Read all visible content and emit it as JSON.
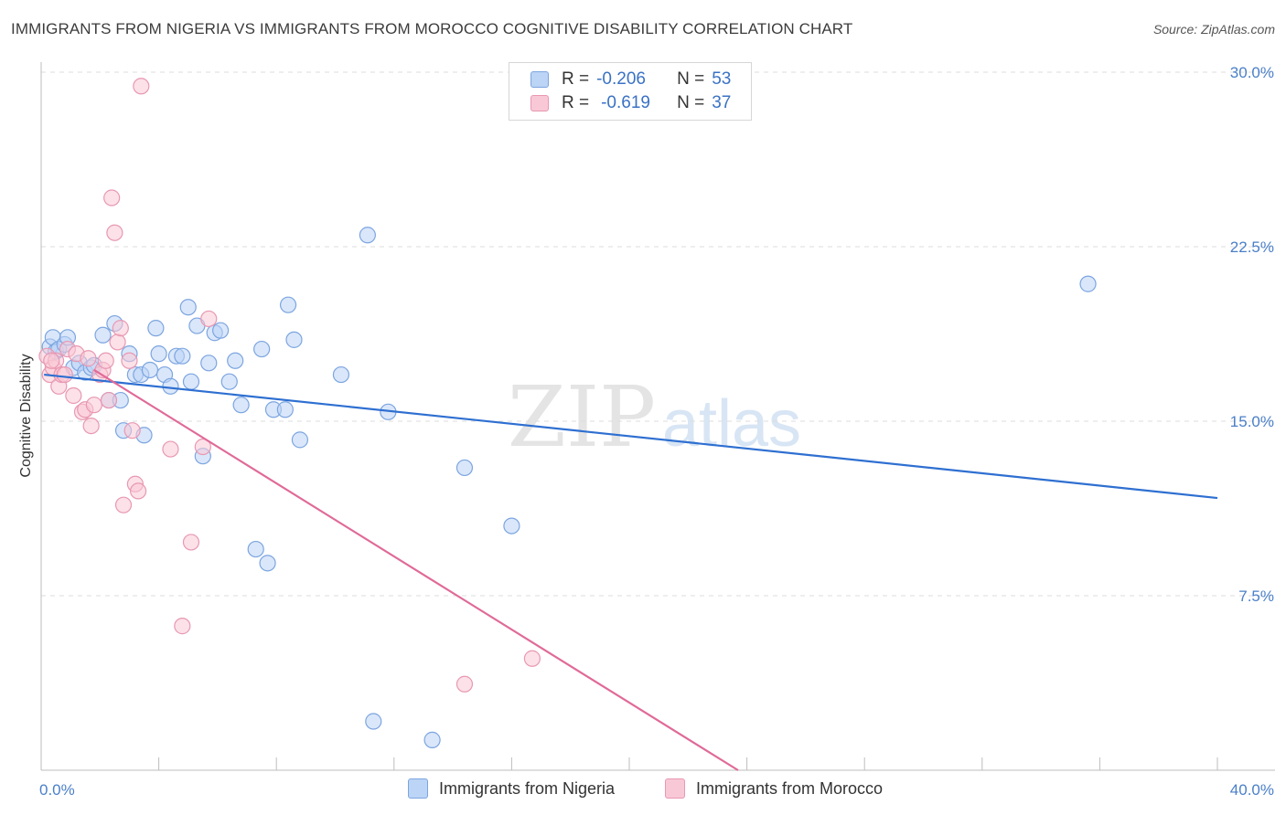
{
  "title": "IMMIGRANTS FROM NIGERIA VS IMMIGRANTS FROM MOROCCO COGNITIVE DISABILITY CORRELATION CHART",
  "source": "Source: ZipAtlas.com",
  "watermark": {
    "zip": "ZIP",
    "atlas": "atlas"
  },
  "stats": [
    {
      "r_label": "R =",
      "r_value": "-0.206",
      "n_label": "N =",
      "n_value": "53",
      "color": "#7ca5e0"
    },
    {
      "r_label": "R =",
      "r_value": "-0.619",
      "n_label": "N =",
      "n_value": "37",
      "color": "#e898b2"
    }
  ],
  "legend": {
    "nigeria": "Immigrants from Nigeria",
    "morocco": "Immigrants from Morocco"
  },
  "chart_data": {
    "type": "scatter",
    "title": "IMMIGRANTS FROM NIGERIA VS IMMIGRANTS FROM MOROCCO COGNITIVE DISABILITY CORRELATION CHART",
    "xlabel": "",
    "ylabel": "Cognitive Disability",
    "xlim": [
      0,
      40
    ],
    "ylim": [
      0,
      30
    ],
    "x_tick_labels": [
      "0.0%",
      "40.0%"
    ],
    "y_ticks": [
      7.5,
      15.0,
      22.5,
      30.0
    ],
    "y_tick_labels": [
      "7.5%",
      "15.0%",
      "22.5%",
      "30.0%"
    ],
    "grid": "horizontal dashed",
    "series": [
      {
        "name": "Immigrants from Nigeria",
        "color": "#7ca5e0",
        "fill": "#bcd4f5",
        "line_color": "#2e6fd1",
        "trend": [
          [
            0.1,
            17.0
          ],
          [
            40.0,
            11.7
          ]
        ],
        "points": [
          [
            0.3,
            18.2
          ],
          [
            0.4,
            18.6
          ],
          [
            0.5,
            18.0
          ],
          [
            0.6,
            18.1
          ],
          [
            0.8,
            18.3
          ],
          [
            0.9,
            18.6
          ],
          [
            1.1,
            17.3
          ],
          [
            1.3,
            17.5
          ],
          [
            1.5,
            17.1
          ],
          [
            1.7,
            17.3
          ],
          [
            1.8,
            17.4
          ],
          [
            2.1,
            18.7
          ],
          [
            2.3,
            15.9
          ],
          [
            2.5,
            19.2
          ],
          [
            2.7,
            15.9
          ],
          [
            2.8,
            14.6
          ],
          [
            3.0,
            17.9
          ],
          [
            3.2,
            17.0
          ],
          [
            3.4,
            17.0
          ],
          [
            3.5,
            14.4
          ],
          [
            3.7,
            17.2
          ],
          [
            3.9,
            19.0
          ],
          [
            4.0,
            17.9
          ],
          [
            4.2,
            17.0
          ],
          [
            4.4,
            16.5
          ],
          [
            4.6,
            17.8
          ],
          [
            4.8,
            17.8
          ],
          [
            5.0,
            19.9
          ],
          [
            5.1,
            16.7
          ],
          [
            5.3,
            19.1
          ],
          [
            5.5,
            13.5
          ],
          [
            5.7,
            17.5
          ],
          [
            5.9,
            18.8
          ],
          [
            6.1,
            18.9
          ],
          [
            6.4,
            16.7
          ],
          [
            6.6,
            17.6
          ],
          [
            6.8,
            15.7
          ],
          [
            7.3,
            9.5
          ],
          [
            7.5,
            18.1
          ],
          [
            7.7,
            8.9
          ],
          [
            7.9,
            15.5
          ],
          [
            8.3,
            15.5
          ],
          [
            8.4,
            20.0
          ],
          [
            8.6,
            18.5
          ],
          [
            8.8,
            14.2
          ],
          [
            10.2,
            17.0
          ],
          [
            11.1,
            23.0
          ],
          [
            11.3,
            2.1
          ],
          [
            11.8,
            15.4
          ],
          [
            13.3,
            1.3
          ],
          [
            14.4,
            13.0
          ],
          [
            16.0,
            10.5
          ],
          [
            35.6,
            20.9
          ]
        ]
      },
      {
        "name": "Immigrants from Morocco",
        "color": "#e898b2",
        "fill": "#f9c8d6",
        "line_color": "#e06a98",
        "trend": [
          [
            1.8,
            17.2
          ],
          [
            23.7,
            0.0
          ]
        ],
        "points": [
          [
            0.2,
            17.8
          ],
          [
            0.3,
            17.0
          ],
          [
            0.4,
            17.3
          ],
          [
            0.5,
            17.6
          ],
          [
            0.6,
            16.5
          ],
          [
            0.7,
            17.0
          ],
          [
            0.8,
            17.0
          ],
          [
            0.9,
            18.1
          ],
          [
            1.1,
            16.1
          ],
          [
            1.2,
            17.9
          ],
          [
            1.4,
            15.4
          ],
          [
            1.5,
            15.5
          ],
          [
            1.6,
            17.7
          ],
          [
            1.7,
            14.8
          ],
          [
            1.8,
            15.7
          ],
          [
            2.0,
            17.0
          ],
          [
            2.1,
            17.2
          ],
          [
            2.2,
            17.6
          ],
          [
            2.3,
            15.9
          ],
          [
            2.4,
            24.6
          ],
          [
            2.5,
            23.1
          ],
          [
            2.6,
            18.4
          ],
          [
            2.7,
            19.0
          ],
          [
            2.8,
            11.4
          ],
          [
            3.0,
            17.6
          ],
          [
            3.1,
            14.6
          ],
          [
            3.2,
            12.3
          ],
          [
            3.3,
            12.0
          ],
          [
            3.4,
            29.4
          ],
          [
            4.4,
            13.8
          ],
          [
            4.8,
            6.2
          ],
          [
            5.1,
            9.8
          ],
          [
            5.5,
            13.9
          ],
          [
            5.7,
            19.4
          ],
          [
            14.4,
            3.7
          ],
          [
            16.7,
            4.8
          ],
          [
            0.35,
            17.6
          ]
        ]
      }
    ]
  }
}
